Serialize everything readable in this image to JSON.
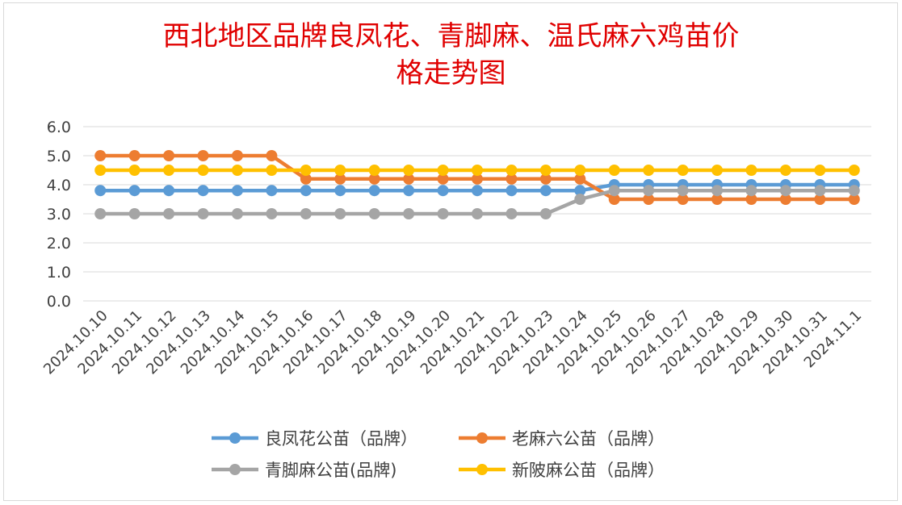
{
  "chart_data": {
    "type": "line",
    "title_line1": "西北地区品牌良凤花、青脚麻、温氏麻六鸡苗价",
    "title_line2": "格走势图",
    "categories": [
      "2024.10.10",
      "2024.10.11",
      "2024.10.12",
      "2024.10.13",
      "2024.10.14",
      "2024.10.15",
      "2024.10.16",
      "2024.10.17",
      "2024.10.18",
      "2024.10.19",
      "2024.10.20",
      "2024.10.21",
      "2024.10.22",
      "2024.10.23",
      "2024.10.24",
      "2024.10.25",
      "2024.10.26",
      "2024.10.27",
      "2024.10.28",
      "2024.10.29",
      "2024.10.30",
      "2024.10.31",
      "2024.11.1"
    ],
    "ylim": [
      0,
      6
    ],
    "yticks": [
      "0.0",
      "1.0",
      "2.0",
      "3.0",
      "4.0",
      "5.0",
      "6.0"
    ],
    "grid": true,
    "legend_position": "bottom",
    "series": [
      {
        "name": "良凤花公苗（品牌）",
        "color": "#5b9bd5",
        "values": [
          3.8,
          3.8,
          3.8,
          3.8,
          3.8,
          3.8,
          3.8,
          3.8,
          3.8,
          3.8,
          3.8,
          3.8,
          3.8,
          3.8,
          3.8,
          4.0,
          4.0,
          4.0,
          4.0,
          4.0,
          4.0,
          4.0,
          4.0
        ]
      },
      {
        "name": "老麻六公苗（品牌）",
        "color": "#ed7d31",
        "values": [
          5.0,
          5.0,
          5.0,
          5.0,
          5.0,
          5.0,
          4.2,
          4.2,
          4.2,
          4.2,
          4.2,
          4.2,
          4.2,
          4.2,
          4.2,
          3.5,
          3.5,
          3.5,
          3.5,
          3.5,
          3.5,
          3.5,
          3.5
        ]
      },
      {
        "name": "青脚麻公苗(品牌)",
        "color": "#a5a5a5",
        "values": [
          3.0,
          3.0,
          3.0,
          3.0,
          3.0,
          3.0,
          3.0,
          3.0,
          3.0,
          3.0,
          3.0,
          3.0,
          3.0,
          3.0,
          3.5,
          3.8,
          3.8,
          3.8,
          3.8,
          3.8,
          3.8,
          3.8,
          3.8
        ]
      },
      {
        "name": "新陂麻公苗（品牌）",
        "color": "#ffc000",
        "values": [
          4.5,
          4.5,
          4.5,
          4.5,
          4.5,
          4.5,
          4.5,
          4.5,
          4.5,
          4.5,
          4.5,
          4.5,
          4.5,
          4.5,
          4.5,
          4.5,
          4.5,
          4.5,
          4.5,
          4.5,
          4.5,
          4.5,
          4.5
        ]
      }
    ]
  }
}
